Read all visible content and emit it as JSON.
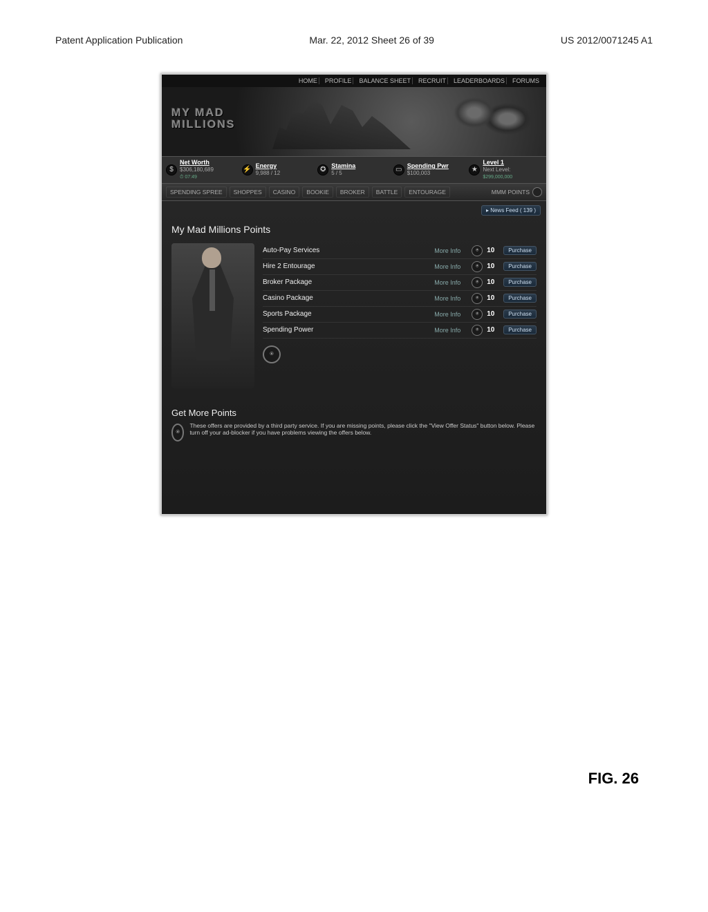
{
  "doc": {
    "left_header": "Patent Application Publication",
    "mid_header": "Mar. 22, 2012  Sheet 26 of 39",
    "right_header": "US 2012/0071245 A1",
    "figure_label": "FIG. 26"
  },
  "topnav": [
    "HOME",
    "PROFILE",
    "BALANCE SHEET",
    "RECRUIT",
    "LEADERBOARDS",
    "FORUMS"
  ],
  "logo_line1": "MY  MAD",
  "logo_line2": "MILLIONS",
  "stats": {
    "networth": {
      "label": "Net Worth",
      "value": "$306,180,689",
      "sub": "⏱ 07:49"
    },
    "energy": {
      "label": "Energy",
      "value": "9,988 / 12"
    },
    "stamina": {
      "label": "Stamina",
      "value": "5 / 5"
    },
    "spend": {
      "label": "Spending Pwr",
      "value": "$100,003"
    },
    "level": {
      "label": "Level 1",
      "value": "Next Level:",
      "sub": "$299,000,000"
    }
  },
  "subtabs": [
    "SPENDING SPREE",
    "SHOPPES",
    "CASINO",
    "BOOKIE",
    "BROKER",
    "BATTLE",
    "ENTOURAGE"
  ],
  "mmmpoints_label": "MMM POINTS",
  "newsfeed_label": "▸ News Feed ( 139 )",
  "panel_title": "My Mad Millions Points",
  "items": [
    {
      "name": "Auto-Pay Services",
      "more": "More Info",
      "price": "10",
      "btn": "Purchase"
    },
    {
      "name": "Hire 2 Entourage",
      "more": "More Info",
      "price": "10",
      "btn": "Purchase"
    },
    {
      "name": "Broker Package",
      "more": "More Info",
      "price": "10",
      "btn": "Purchase"
    },
    {
      "name": "Casino Package",
      "more": "More Info",
      "price": "10",
      "btn": "Purchase"
    },
    {
      "name": "Sports Package",
      "more": "More Info",
      "price": "10",
      "btn": "Purchase"
    },
    {
      "name": "Spending Power",
      "more": "More Info",
      "price": "10",
      "btn": "Purchase"
    }
  ],
  "section2_title": "Get More Points",
  "offers_text": "These offers are provided by a third party service. If you are missing points, please click the \"View Offer Status\" button below. Please turn off your ad-blocker if you have problems viewing the offers below.",
  "icons": {
    "dollar": "$",
    "bolt": "⚡",
    "shield": "✪",
    "card": "▭",
    "star": "★",
    "coin": "⍟"
  },
  "colors": {
    "panel_bg": "#262626",
    "accent_blue": "#2a3a4a",
    "text_light": "#eeeeee"
  }
}
